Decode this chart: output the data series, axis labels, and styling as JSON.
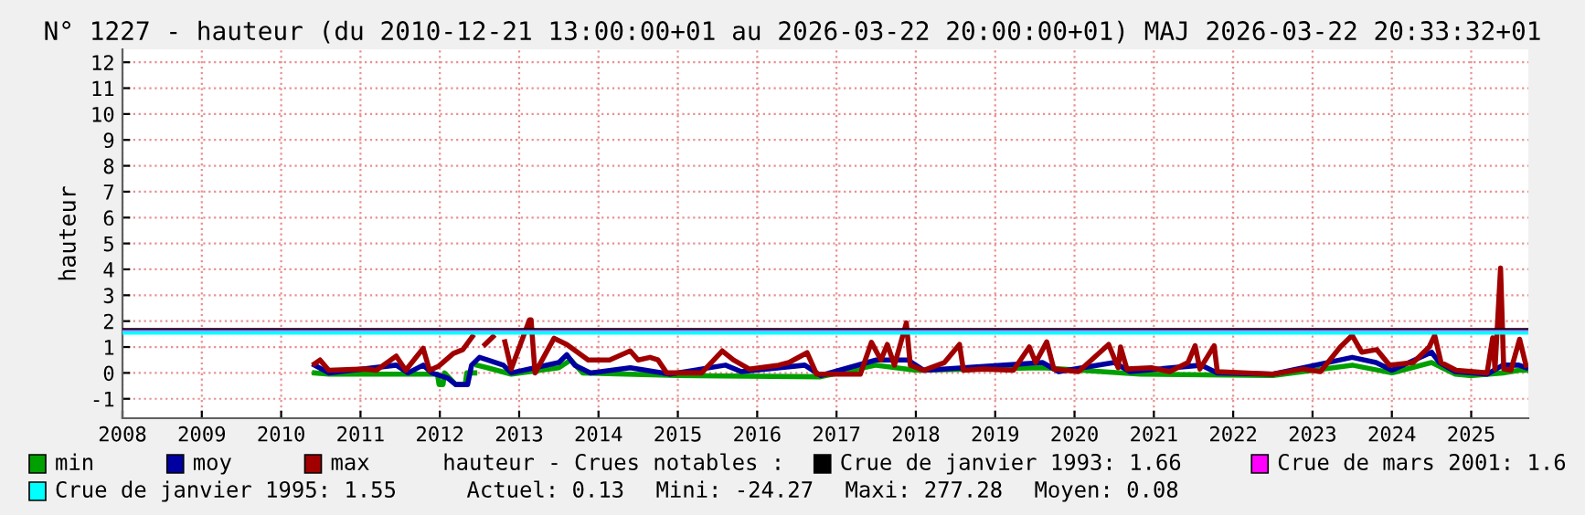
{
  "chart_data": {
    "type": "line",
    "title": "N° 1227 - hauteur (du 2010-12-21 13:00:00+01 au 2026-03-22 20:00:00+01) MAJ 2026-03-22 20:33:32+01",
    "ylabel": "hauteur",
    "xlim": [
      2008,
      2025.72
    ],
    "xticks": [
      2008,
      2009,
      2010,
      2011,
      2012,
      2013,
      2014,
      2015,
      2016,
      2017,
      2018,
      2019,
      2020,
      2021,
      2022,
      2023,
      2024,
      2025
    ],
    "ylim": [
      -1.75,
      12.5
    ],
    "yticks": [
      -1,
      0,
      1,
      2,
      3,
      4,
      5,
      6,
      7,
      8,
      9,
      10,
      11,
      12
    ],
    "grid": true,
    "legend": "bottom",
    "line_style": "solid",
    "marker": "none",
    "series": [
      {
        "name": "min",
        "color": "#00a000",
        "x": [
          2010.42,
          2010.6,
          2011.5,
          2011.97,
          2011.99,
          2012.04,
          2012.06,
          2012.2,
          2012.32,
          2012.34,
          2012.44,
          2012.45,
          2012.46,
          2012.47,
          2012.6,
          2012.9,
          2013.5,
          2013.65,
          2013.8,
          2015.0,
          2016.8,
          2017.5,
          2018.0,
          2019.6,
          2020.83,
          2020.84,
          2020.85,
          2020.86,
          2022.5,
          2023.5,
          2024.0,
          2024.5,
          2024.8,
          2024.98,
          2024.99,
          2025.0,
          2025.01,
          2025.4,
          2025.6,
          2025.69
        ],
        "values": [
          0.0,
          -0.05,
          -0.05,
          -0.05,
          -0.45,
          -0.45,
          0.0,
          -0.45,
          -0.45,
          0.0,
          0.0,
          null,
          null,
          0.3,
          0.2,
          -0.05,
          0.2,
          0.5,
          0.0,
          -0.1,
          -0.15,
          0.3,
          0.1,
          0.2,
          -0.05,
          null,
          null,
          -0.05,
          -0.1,
          0.3,
          0.0,
          0.4,
          -0.05,
          -0.1,
          null,
          null,
          -0.1,
          0.0,
          0.1,
          0.1
        ]
      },
      {
        "name": "moy",
        "color": "#0000a0",
        "x": [
          2010.42,
          2010.6,
          2011.45,
          2011.6,
          2011.79,
          2011.9,
          2012.1,
          2012.2,
          2012.35,
          2012.4,
          2012.5,
          2012.6,
          2012.8,
          2012.9,
          2013.5,
          2013.6,
          2013.7,
          2013.9,
          2014.4,
          2014.6,
          2014.9,
          2015.6,
          2015.8,
          2016.6,
          2016.8,
          2017.5,
          2017.9,
          2018.1,
          2019.6,
          2019.8,
          2020.5,
          2020.7,
          2021.6,
          2021.8,
          2022.5,
          2023.5,
          2023.8,
          2024.0,
          2024.5,
          2024.6,
          2024.8,
          2025.2,
          2025.4,
          2025.6,
          2025.69
        ],
        "values": [
          0.3,
          0.0,
          0.3,
          0.0,
          0.3,
          0.0,
          -0.2,
          -0.45,
          -0.45,
          0.3,
          0.6,
          0.5,
          0.3,
          0.0,
          0.4,
          0.7,
          0.3,
          0.0,
          0.2,
          0.1,
          -0.05,
          0.3,
          0.05,
          0.3,
          -0.1,
          0.5,
          0.5,
          0.1,
          0.4,
          0.05,
          0.4,
          0.05,
          0.3,
          0.0,
          -0.05,
          0.6,
          0.4,
          0.1,
          0.8,
          0.4,
          0.05,
          -0.05,
          0.3,
          0.3,
          0.2
        ]
      },
      {
        "name": "max",
        "color": "#a00000",
        "x": [
          2010.42,
          2010.49,
          2010.6,
          2011.06,
          2011.2,
          2011.45,
          2011.57,
          2011.79,
          2011.87,
          2011.98,
          2012.17,
          2012.29,
          2012.41,
          2012.47,
          2012.5,
          2012.57,
          2012.67,
          2012.75,
          2012.77,
          2012.82,
          2012.9,
          2013.13,
          2013.15,
          2013.2,
          2013.44,
          2013.6,
          2013.87,
          2014.14,
          2014.4,
          2014.5,
          2014.65,
          2014.75,
          2014.86,
          2015.3,
          2015.56,
          2015.7,
          2015.9,
          2016.27,
          2016.4,
          2016.63,
          2016.75,
          2017.3,
          2017.44,
          2017.56,
          2017.64,
          2017.73,
          2017.88,
          2017.93,
          2018.1,
          2018.36,
          2018.55,
          2018.6,
          2018.85,
          2019.23,
          2019.43,
          2019.51,
          2019.65,
          2019.74,
          2020.05,
          2020.43,
          2020.55,
          2020.58,
          2020.66,
          2020.97,
          2021.2,
          2021.43,
          2021.52,
          2021.58,
          2021.76,
          2021.8,
          2022.5,
          2022.88,
          2023.1,
          2023.35,
          2023.5,
          2023.62,
          2023.81,
          2023.97,
          2024.27,
          2024.47,
          2024.54,
          2024.62,
          2024.81,
          2025.2,
          2025.27,
          2025.3,
          2025.37,
          2025.41,
          2025.5,
          2025.61,
          2025.69
        ],
        "values": [
          0.35,
          0.5,
          0.1,
          0.15,
          0.1,
          0.65,
          0.1,
          0.95,
          0.1,
          0.25,
          0.75,
          0.9,
          1.4,
          null,
          null,
          1.1,
          1.4,
          null,
          null,
          1.2,
          0.15,
          2.05,
          2.05,
          0.0,
          1.34,
          1.1,
          0.5,
          0.5,
          0.85,
          0.5,
          0.6,
          0.5,
          0.0,
          0.0,
          0.85,
          0.5,
          0.15,
          0.3,
          0.4,
          0.78,
          -0.05,
          -0.05,
          1.18,
          0.5,
          1.1,
          0.3,
          1.93,
          0.3,
          0.1,
          0.4,
          1.1,
          0.1,
          0.15,
          0.1,
          1.0,
          0.4,
          1.2,
          0.15,
          0.05,
          1.1,
          0.2,
          1.0,
          0.15,
          0.2,
          0.05,
          0.4,
          1.05,
          0.15,
          1.05,
          0.05,
          -0.05,
          0.15,
          0.05,
          1.0,
          1.45,
          0.8,
          0.9,
          0.3,
          0.4,
          1.0,
          1.45,
          0.4,
          0.1,
          0.0,
          1.35,
          0.15,
          4.05,
          0.15,
          0.1,
          1.3,
          0.3
        ]
      }
    ],
    "ref_lines": [
      {
        "axis": "y",
        "value": 1.66,
        "label": "Crue de janvier 1993: 1.66",
        "color": "#000000"
      },
      {
        "axis": "y",
        "value": 1.6,
        "label": "Crue de mars 2001: 1.6",
        "color": "#ff00ff"
      },
      {
        "axis": "y",
        "value": 1.55,
        "label": "Crue de janvier 1995: 1.55",
        "color": "#00ffff"
      }
    ],
    "annotations": [
      "hauteur - Crues notables :",
      "Actuel: 0.13",
      "Mini: -24.27",
      "Maxi: 277.28",
      "Moyen: 0.08"
    ]
  }
}
